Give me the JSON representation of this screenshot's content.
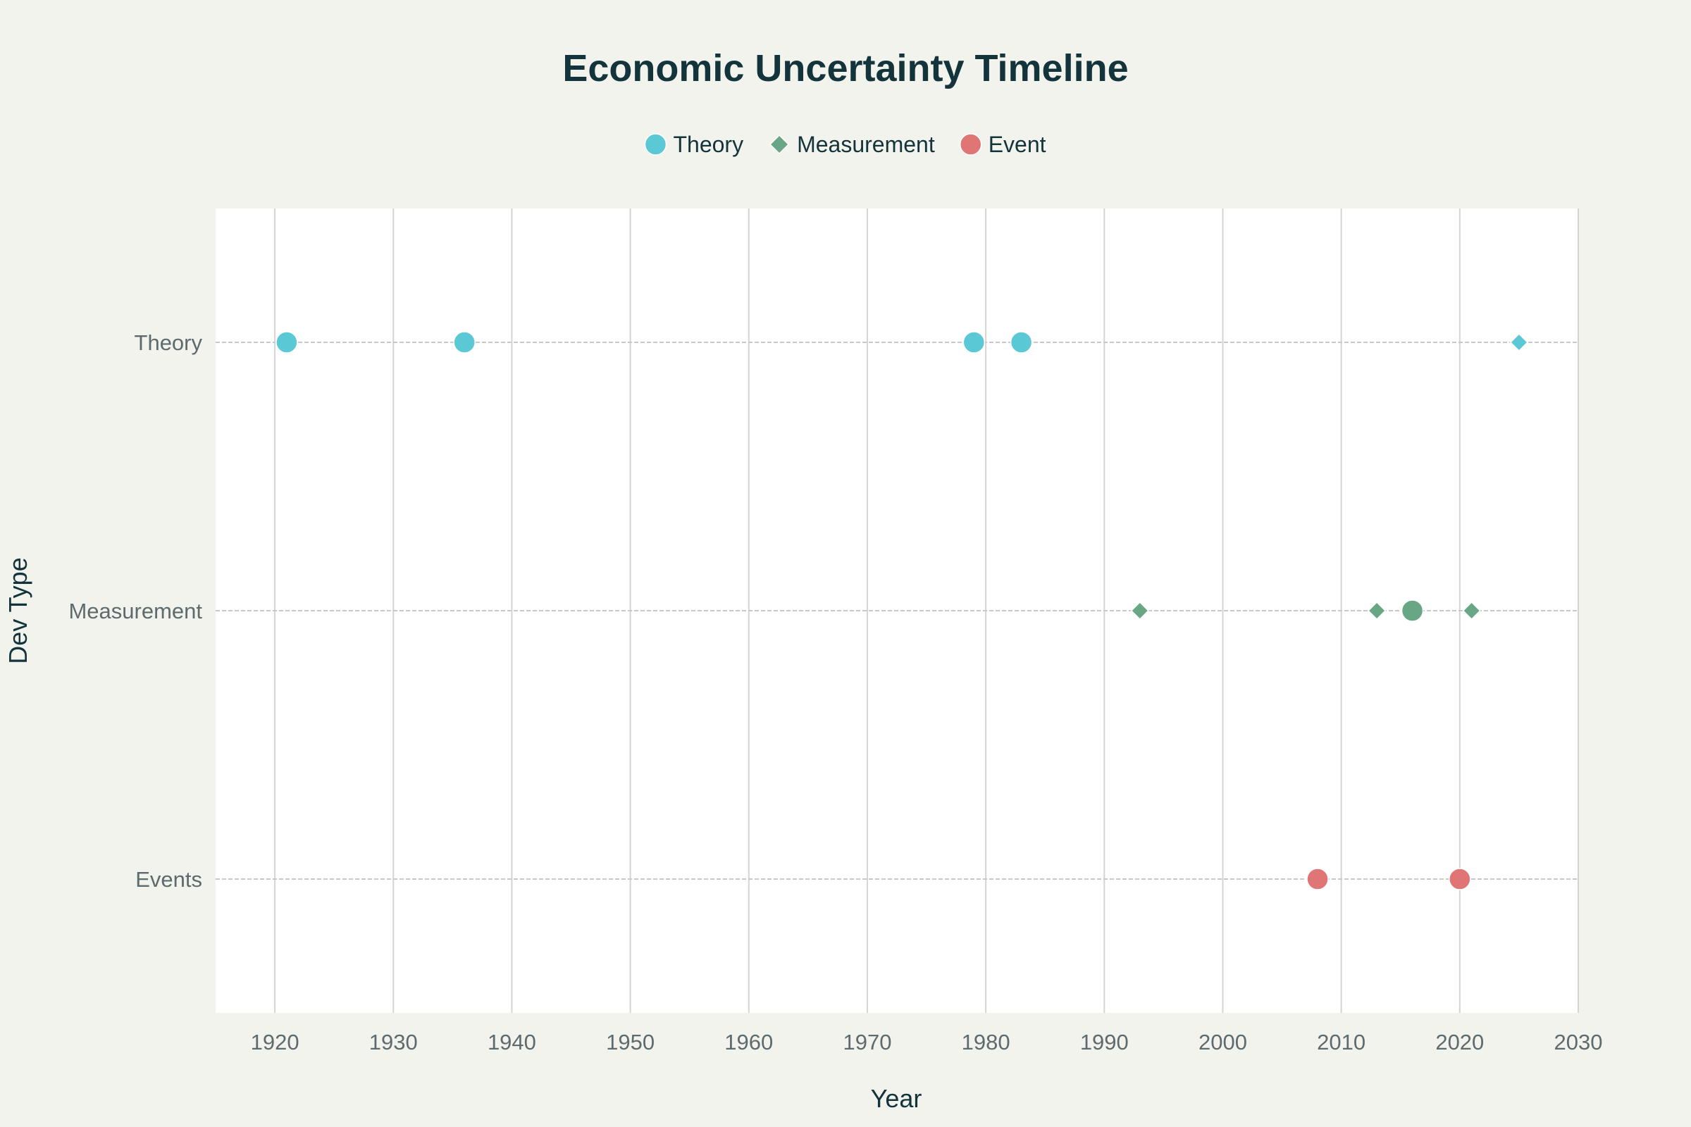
{
  "chart_data": {
    "type": "scatter",
    "title": "Economic Uncertainty Timeline",
    "xlabel": "Year",
    "ylabel": "Dev Type",
    "xlim": [
      1915,
      2030
    ],
    "x_ticks": [
      1920,
      1930,
      1940,
      1950,
      1960,
      1970,
      1980,
      1990,
      2000,
      2010,
      2020,
      2030
    ],
    "y_categories": [
      "Theory",
      "Measurement",
      "Events"
    ],
    "grid": true,
    "legend_position": "top-center",
    "legend": [
      {
        "label": "Theory",
        "symbol": "circle",
        "color": "#5bc8d6"
      },
      {
        "label": "Measurement",
        "symbol": "diamond",
        "color": "#68a685"
      },
      {
        "label": "Event",
        "symbol": "circle",
        "color": "#e07575"
      }
    ],
    "points": [
      {
        "x": 1921,
        "y": "Theory",
        "symbol": "circle",
        "color": "#5bc8d6"
      },
      {
        "x": 1936,
        "y": "Theory",
        "symbol": "circle",
        "color": "#5bc8d6"
      },
      {
        "x": 1979,
        "y": "Theory",
        "symbol": "circle",
        "color": "#5bc8d6"
      },
      {
        "x": 1983,
        "y": "Theory",
        "symbol": "circle",
        "color": "#5bc8d6"
      },
      {
        "x": 2025,
        "y": "Theory",
        "symbol": "diamond",
        "color": "#5bc8d6"
      },
      {
        "x": 1993,
        "y": "Measurement",
        "symbol": "diamond",
        "color": "#68a685"
      },
      {
        "x": 2013,
        "y": "Measurement",
        "symbol": "diamond",
        "color": "#68a685"
      },
      {
        "x": 2016,
        "y": "Measurement",
        "symbol": "circle",
        "color": "#68a685"
      },
      {
        "x": 2021,
        "y": "Measurement",
        "symbol": "diamond",
        "color": "#68a685"
      },
      {
        "x": 2008,
        "y": "Events",
        "symbol": "circle",
        "color": "#e07575"
      },
      {
        "x": 2020,
        "y": "Events",
        "symbol": "circle",
        "color": "#e07575"
      }
    ]
  }
}
